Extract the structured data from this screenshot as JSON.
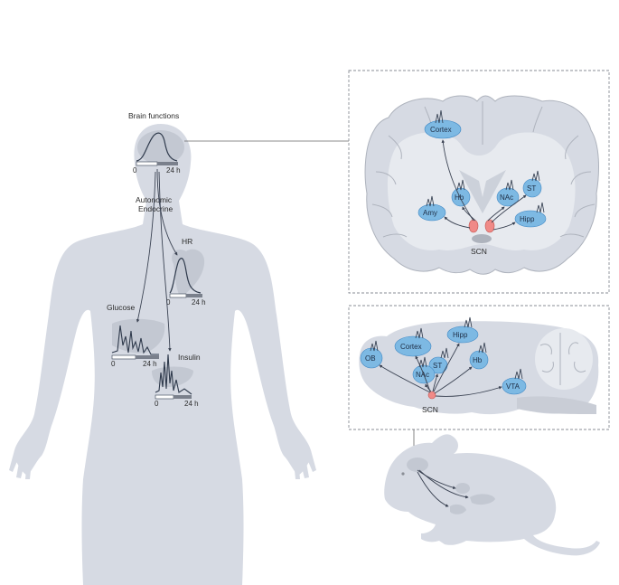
{
  "human": {
    "brain_functions": "Brain functions",
    "autonomic": "Autonomic",
    "endocrine": "Endocrine",
    "hr": "HR",
    "glucose": "Glucose",
    "insulin": "Insulin",
    "axis_start": "0",
    "axis_end": "24 h"
  },
  "coronal": {
    "regions": {
      "cortex": "Cortex",
      "hb": "Hb",
      "nac": "NAc",
      "st": "ST",
      "amy": "Amy",
      "hipp": "Hipp"
    },
    "scn": "SCN"
  },
  "sagittal": {
    "regions": {
      "cortex": "Cortex",
      "hipp": "Hipp",
      "ob": "OB",
      "st": "ST",
      "nac": "NAc",
      "hb": "Hb",
      "vta": "VTA"
    },
    "scn": "SCN"
  },
  "colors": {
    "silhouette": "#d6dae3",
    "organ": "#c3c8d2",
    "region": "#7db9e3",
    "region_stroke": "#3f88c5",
    "scn": "#f08a87",
    "trace": "#2f3a4c",
    "arrow": "#3a4252"
  }
}
